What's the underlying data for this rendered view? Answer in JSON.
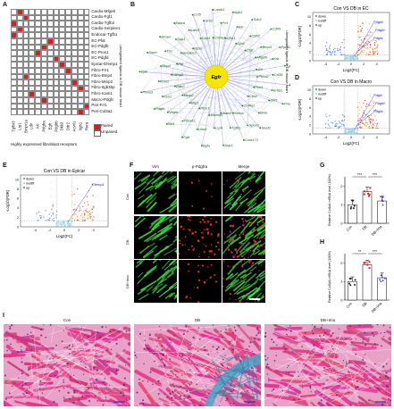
{
  "panels": {
    "A": {
      "label": "A",
      "rows": [
        "Cardio-Mfge8",
        "Cardio-Fgf1",
        "Cardio-Tgfb2",
        "Cardio-Serpine1",
        "Endocar-Tgfb1",
        "EC-Pfal",
        "EC-Pdgfb",
        "EC-Pros1",
        "EC-Pdgfd",
        "Epicar-Efemp1",
        "Fibro-Frr1",
        "Fibro-Bmp4",
        "Fibro-Mmp2",
        "Fibro-Itgb3bp",
        "Fibro-Icam1",
        "Macro-Pdgfc",
        "Peri-Frr1",
        "Peri-Col3a1"
      ],
      "cols": [
        "Tgfbr3",
        "Lrp1",
        "Bmpr1a",
        "Ldlr",
        "Axl",
        "Pdgfra",
        "Egfr",
        "Pdgfrb",
        "Dkk3",
        "Ddr2",
        "Acvrl1",
        "Itgb1",
        "Rora"
      ],
      "paired": [
        [
          0,
          1
        ],
        [
          1,
          2
        ],
        [
          2,
          0
        ],
        [
          3,
          1
        ],
        [
          4,
          0
        ],
        [
          5,
          6
        ],
        [
          6,
          5
        ],
        [
          7,
          4
        ],
        [
          8,
          7
        ],
        [
          9,
          8
        ],
        [
          10,
          9
        ],
        [
          11,
          2
        ],
        [
          12,
          10
        ],
        [
          13,
          11
        ],
        [
          14,
          3
        ],
        [
          15,
          5
        ],
        [
          16,
          12
        ],
        [
          17,
          11
        ]
      ],
      "side_label": "Unregulated ligands in DB mouse heart",
      "bottom_label": "Highly expressed fibroblast receptors",
      "legend": {
        "paired": "Paired",
        "unpaired": "Unpaired"
      },
      "colors": {
        "paired": "#d81e1e",
        "unpaired": "#ffffff",
        "grid": "#888888"
      }
    },
    "B": {
      "label": "B",
      "center": "Egfr",
      "genes": [
        "Ptma2",
        "Ebf1",
        "Seaf1",
        "Plm1",
        "Bmk",
        "Cola171",
        "Cks1",
        "Spon1",
        "Axp1",
        "Col4a1",
        "Tgfb1",
        "Itgfa",
        "Sema",
        "Lrp4",
        "Fgfr",
        "Stab1",
        "Lilrb1",
        "Nrf1",
        "Mamld1",
        "Tmod1",
        "Pdgfb",
        "Ptch1",
        "Vegfa",
        "Plxnd1",
        "Nrp1",
        "Fbn1",
        "Cpe",
        "Mmp2",
        "Fmn2",
        "Smtn",
        "Dab2",
        "Rbp4",
        "Alcam",
        "Lama2",
        "Tnc",
        "Ednra",
        "Ptn",
        "Spp1",
        "Ccl5",
        "Serpine1",
        "Icam1",
        "Lamb1",
        "Hpse",
        "Grb2",
        "Itgb1",
        "Cd44",
        "Fn1",
        "Sdc4",
        "Col3a1",
        "Eln",
        "Cdh5",
        "Gfra1",
        "Cdh2",
        "Ephb1",
        "Gja1",
        "Bmp4",
        "Tgfb2",
        "Ctgf",
        "Kdr",
        "Vcam1",
        "Mfge8",
        "Cd36",
        "Pros1",
        "Axl",
        "Erbb2"
      ],
      "side_label": "Unregulated ligands in DB mouse heart",
      "colors": {
        "node": "#1a7a1a",
        "center": "#f5e600",
        "edge": "#5a5ad0"
      }
    },
    "C": {
      "label": "C",
      "title": "Con VS DB in EC",
      "xlabel": "Log2(FC)",
      "ylabel": "-Log10(FDR)",
      "legend": [
        "down",
        "nodiff",
        "up"
      ],
      "annotations": [
        "Pdgfd",
        "Pdgfb",
        "Pdgfa"
      ],
      "xlim": [
        -6,
        6
      ],
      "ticks_x": [
        "-4",
        "-2",
        "0",
        "2",
        "4"
      ],
      "ticks_y": [
        "0",
        "2",
        "4",
        "6",
        "8",
        "10"
      ]
    },
    "D": {
      "label": "D",
      "title": "Con VS DB in Macro",
      "xlabel": "Log2(FC)",
      "ylabel": "-Log10(FDR)",
      "legend": [
        "down",
        "nodiff",
        "up"
      ],
      "annotations": [
        "Pdgfc",
        "Pdgfd",
        "Pdgfa"
      ],
      "ticks_x": [
        "-4",
        "-2",
        "0",
        "2",
        "4"
      ],
      "ticks_y": [
        "0",
        "2",
        "4",
        "6",
        "8",
        "10"
      ]
    },
    "E": {
      "label": "E",
      "title": "Con VS DB in Epicar",
      "xlabel": "Log2(FC)",
      "ylabel": "-Log10(FDR)",
      "legend": [
        "down",
        "nodiff",
        "up"
      ],
      "annotations": [
        "Efemp1"
      ],
      "ticks_x": [
        "-4",
        "-2",
        "0",
        "2",
        "4"
      ],
      "ticks_y": [
        "0",
        "2",
        "4",
        "6",
        "8",
        "10"
      ]
    },
    "F": {
      "label": "F",
      "columns": [
        "Vim",
        "p-Pdgfra",
        "Merge"
      ],
      "rows": [
        "Con",
        "DB",
        "DB+Ima"
      ]
    },
    "G": {
      "label": "G",
      "ylabel": "Relative Col1a1 mRNA level (100%)",
      "sig": [
        "***",
        "***"
      ],
      "groups": [
        "Con",
        "DB",
        "DB+Ima"
      ],
      "ticks_y": [
        "0",
        "1",
        "2",
        "3"
      ],
      "means": [
        1.0,
        1.7,
        1.2
      ]
    },
    "H": {
      "label": "H",
      "ylabel": "Relative Col3a1 mRNA level (100%)",
      "sig": [
        "**",
        "***"
      ],
      "groups": [
        "Con",
        "DB",
        "DB+Ima"
      ],
      "ticks_y": [
        "0",
        "1",
        "2",
        "3"
      ],
      "means": [
        1.0,
        1.9,
        1.2
      ]
    },
    "I": {
      "label": "I",
      "titles": [
        "Con",
        "DB",
        "DB+Ima"
      ]
    }
  },
  "chart_data": [
    {
      "type": "bar",
      "panel": "G",
      "categories": [
        "Con",
        "DB",
        "DB+Ima"
      ],
      "values": [
        1.0,
        1.7,
        1.2
      ],
      "ylabel": "Relative Col1a1 mRNA level (100%)",
      "ylim": [
        0,
        2.5
      ]
    },
    {
      "type": "bar",
      "panel": "H",
      "categories": [
        "Con",
        "DB",
        "DB+Ima"
      ],
      "values": [
        1.0,
        1.9,
        1.2
      ],
      "ylabel": "Relative Col3a1 mRNA level (100%)",
      "ylim": [
        0,
        2.5
      ]
    }
  ]
}
